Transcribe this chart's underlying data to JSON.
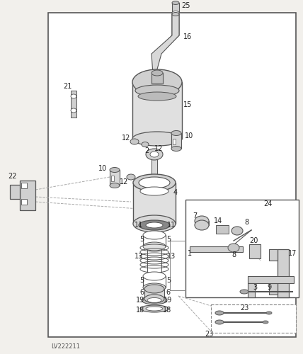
{
  "bg_color": "#f2f0ec",
  "border_color": "#555555",
  "watermark": "LV222211",
  "text_color": "#222222",
  "font_size": 7.0,
  "figsize": [
    4.28,
    5.0
  ],
  "dpi": 100
}
